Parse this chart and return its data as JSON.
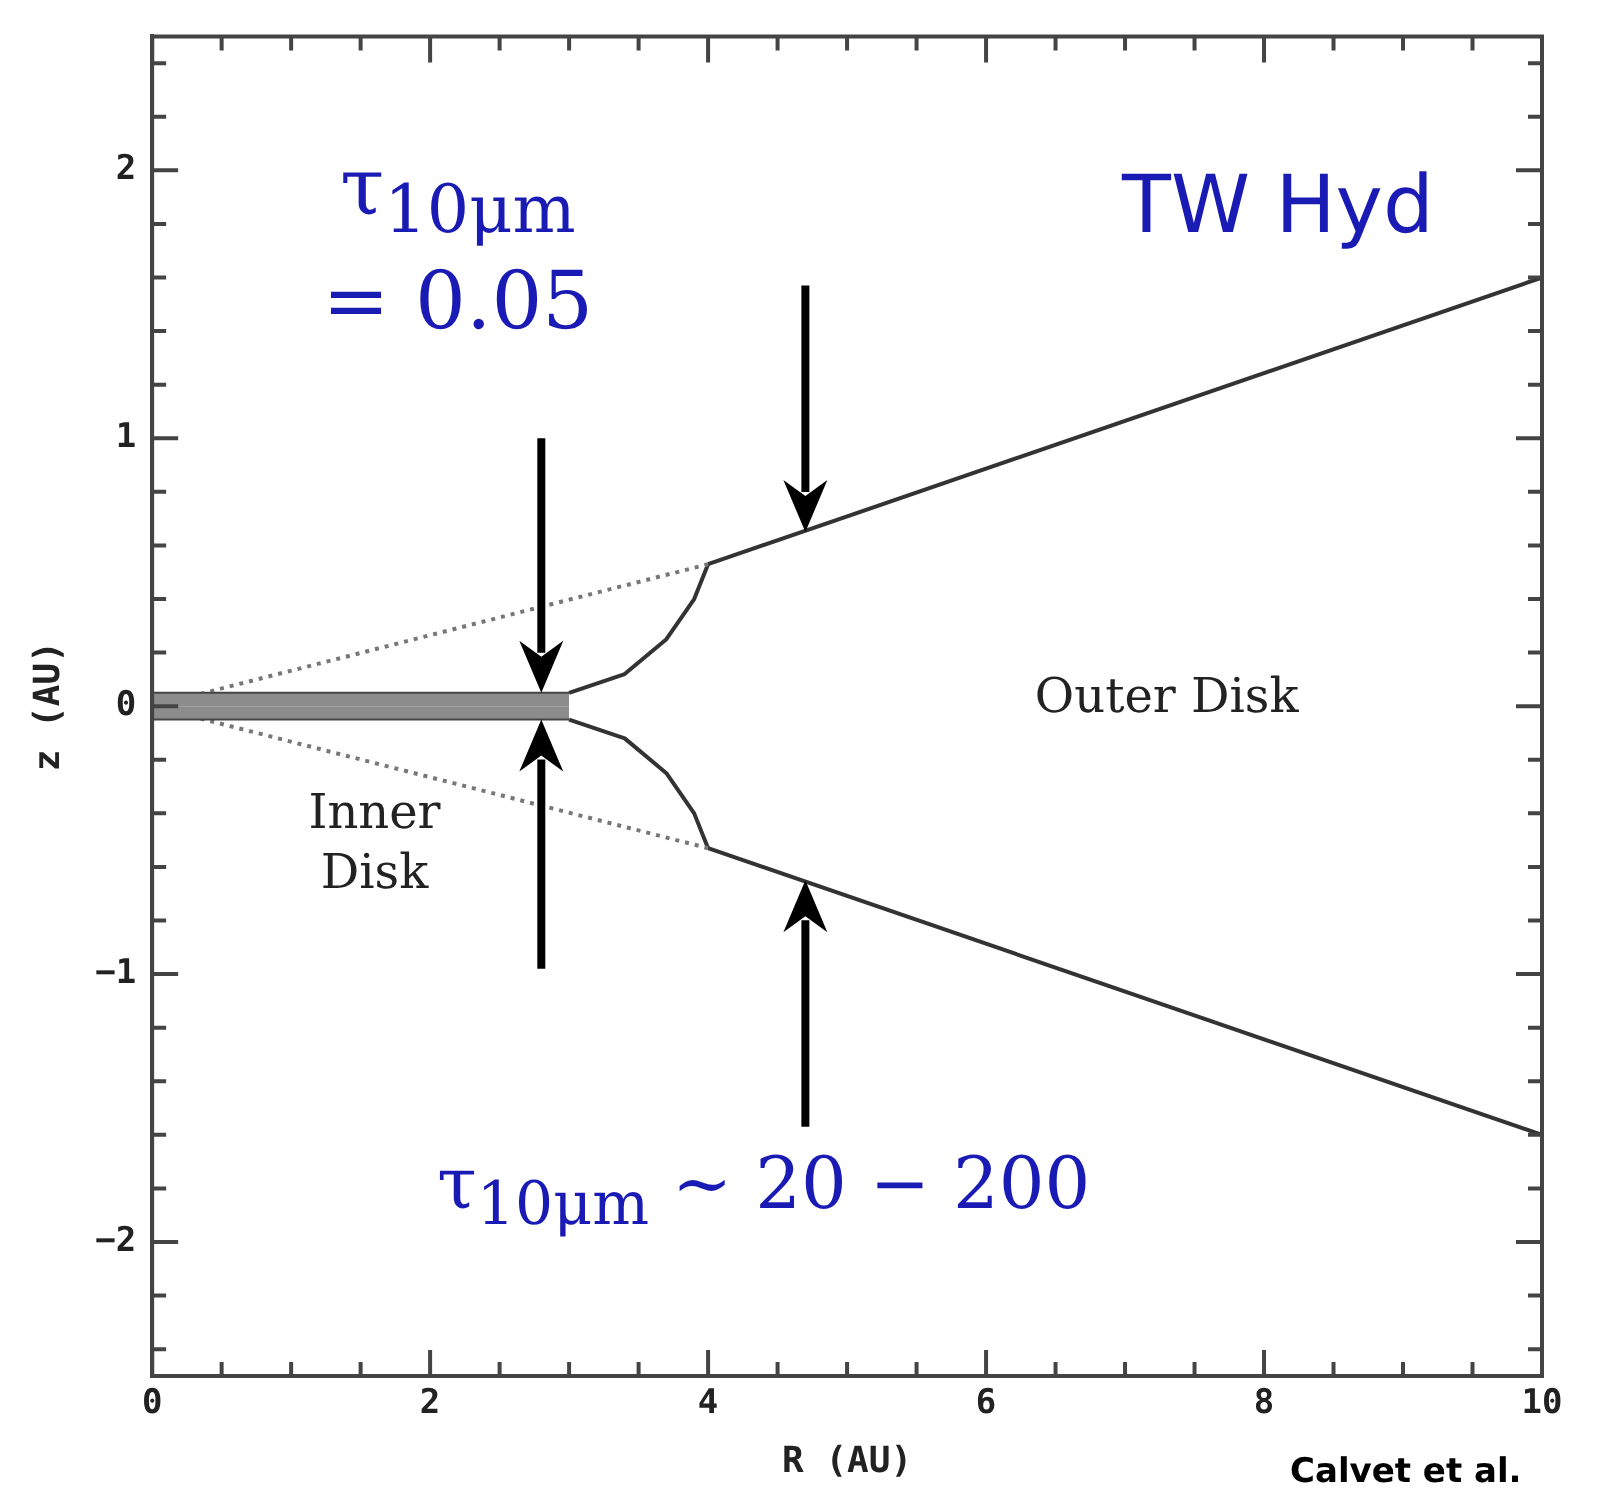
{
  "chart_data": {
    "type": "line",
    "xlabel": "R (AU)",
    "ylabel": "z (AU)",
    "xlim": [
      0,
      10
    ],
    "ylim": [
      -2.5,
      2.5
    ],
    "xticks": [
      0,
      {
        "value": 0.5,
        "label": null
      },
      {
        "value": 1,
        "label": null
      },
      {
        "value": 1.5,
        "label": null
      },
      2,
      {
        "value": 2.5,
        "label": null
      },
      {
        "value": 3,
        "label": null
      },
      {
        "value": 3.5,
        "label": null
      },
      4,
      {
        "value": 4.5,
        "label": null
      },
      {
        "value": 5,
        "label": null
      },
      {
        "value": 5.5,
        "label": null
      },
      6,
      {
        "value": 6.5,
        "label": null
      },
      {
        "value": 7,
        "label": null
      },
      {
        "value": 7.5,
        "label": null
      },
      8,
      {
        "value": 8.5,
        "label": null
      },
      {
        "value": 9,
        "label": null
      },
      {
        "value": 9.5,
        "label": null
      },
      10
    ],
    "yticks": [
      {
        "value": -2.4,
        "label": null
      },
      {
        "value": -2.2,
        "label": null
      },
      {
        "value": -2,
        "label": "−2"
      },
      {
        "value": -1.8,
        "label": null
      },
      {
        "value": -1.6,
        "label": null
      },
      {
        "value": -1.4,
        "label": null
      },
      {
        "value": -1.2,
        "label": null
      },
      {
        "value": -1,
        "label": "−1"
      },
      {
        "value": -0.8,
        "label": null
      },
      {
        "value": -0.6,
        "label": null
      },
      {
        "value": -0.4,
        "label": null
      },
      {
        "value": -0.2,
        "label": null
      },
      0,
      {
        "value": 0.2,
        "label": null
      },
      {
        "value": 0.4,
        "label": null
      },
      {
        "value": 0.6,
        "label": null
      },
      {
        "value": 0.8,
        "label": null
      },
      1,
      {
        "value": 1.2,
        "label": null
      },
      {
        "value": 1.4,
        "label": null
      },
      {
        "value": 1.6,
        "label": null
      },
      {
        "value": 1.8,
        "label": null
      },
      2,
      {
        "value": 2.2,
        "label": null
      },
      {
        "value": 2.4,
        "label": null
      }
    ],
    "grid": false,
    "legend": false,
    "marker": "none",
    "annotations": [
      "τ$_{10μm}$\n= 0.05",
      "TW Hyd",
      "Outer Disk",
      "Inner\nDisk",
      "τ$_{10μm}$ ∼ 20 − 200",
      "Calvet et al."
    ],
    "series": [
      {
        "type": "area",
        "color": "#8c8c8c",
        "x": [
          0,
          3
        ],
        "values": [
          0.05,
          0.05
        ]
      },
      {
        "type": "area",
        "color": "#8c8c8c",
        "x": [
          0,
          3
        ],
        "values": [
          -0.05,
          -0.05
        ]
      },
      {
        "type": "line",
        "line_style": "dotted",
        "color": "#777777",
        "x": [
          0,
          4
        ],
        "values": [
          0,
          0.53
        ]
      },
      {
        "type": "line",
        "line_style": "dotted",
        "color": "#777777",
        "x": [
          0,
          4
        ],
        "values": [
          0,
          -0.53
        ]
      },
      {
        "type": "line",
        "line_style": "solid",
        "color": "#333333",
        "x": [
          3,
          3.4,
          3.7,
          3.9,
          4
        ],
        "values": [
          0.05,
          0.12,
          0.25,
          0.4,
          0.53
        ]
      },
      {
        "type": "line",
        "line_style": "solid",
        "color": "#333333",
        "x": [
          3,
          3.4,
          3.7,
          3.9,
          4
        ],
        "values": [
          -0.05,
          -0.12,
          -0.25,
          -0.4,
          -0.53
        ]
      },
      {
        "type": "line",
        "line_style": "solid",
        "color": "#333333",
        "x": [
          4,
          10
        ],
        "values": [
          0.53,
          1.6
        ]
      },
      {
        "type": "line",
        "line_style": "solid",
        "color": "#333333",
        "x": [
          4,
          10
        ],
        "values": [
          -0.53,
          -1.6
        ]
      }
    ]
  }
}
